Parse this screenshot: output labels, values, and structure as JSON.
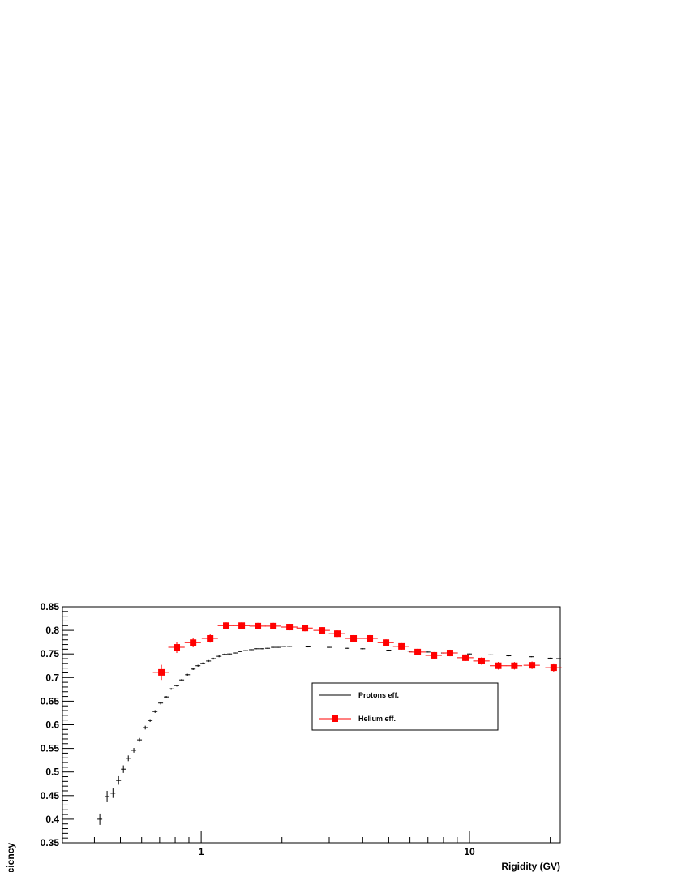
{
  "chart_data": {
    "type": "errorbar",
    "x_label": "Rigidity (GV)",
    "y_label": "Total efficiency",
    "xlim": [
      0.304,
      21.8
    ],
    "ylim": [
      0.35,
      0.85
    ],
    "xlog": true,
    "xticks": [
      1,
      10
    ],
    "xminorticks": [
      0.4,
      0.5,
      0.6,
      0.7,
      0.8,
      0.9,
      2,
      3,
      4,
      5,
      6,
      7,
      8,
      9,
      20
    ],
    "yticks": [
      0.35,
      0.4,
      0.45,
      0.5,
      0.55,
      0.6,
      0.65,
      0.7,
      0.75,
      0.8,
      0.85
    ],
    "legend_position": "center",
    "series": [
      {
        "name": "Protons eff.",
        "color": "#000000",
        "marker": "cross",
        "x": [
          0.419,
          0.446,
          0.469,
          0.492,
          0.513,
          0.535,
          0.561,
          0.589,
          0.619,
          0.645,
          0.673,
          0.706,
          0.741,
          0.773,
          0.811,
          0.846,
          0.889,
          0.933,
          0.973,
          1.014,
          1.065,
          1.11,
          1.166,
          1.224,
          1.276,
          1.34,
          1.396,
          1.466,
          1.539,
          1.605,
          1.685,
          1.769,
          1.858,
          1.937,
          2.034,
          2.135,
          2.5,
          3,
          3.5,
          4,
          5,
          6,
          7,
          8,
          10,
          12,
          14,
          17,
          20,
          21.5
        ],
        "values": [
          0.4,
          0.448,
          0.455,
          0.482,
          0.506,
          0.529,
          0.546,
          0.568,
          0.594,
          0.609,
          0.628,
          0.646,
          0.659,
          0.676,
          0.683,
          0.695,
          0.706,
          0.718,
          0.725,
          0.73,
          0.735,
          0.74,
          0.745,
          0.749,
          0.75,
          0.752,
          0.755,
          0.757,
          0.759,
          0.761,
          0.761,
          0.762,
          0.764,
          0.764,
          0.766,
          0.766,
          0.765,
          0.764,
          0.762,
          0.761,
          0.758,
          0.756,
          0.754,
          0.752,
          0.75,
          0.748,
          0.746,
          0.744,
          0.741,
          0.74
        ],
        "yerr": [
          0.012,
          0.012,
          0.01,
          0.009,
          0.008,
          0.006,
          0.005,
          0.004,
          0.004,
          0.003,
          0.003,
          0.003,
          0.002,
          0.002,
          0.002,
          0.002,
          0.002,
          0.002,
          0.002,
          0.002,
          0.002,
          0.002,
          0.002,
          0.002,
          0.001,
          0.001,
          0.001,
          0.001,
          0.001,
          0.001,
          0.001,
          0.001,
          0.001,
          0.001,
          0.001,
          0.001,
          0.001,
          0.001,
          0.001,
          0.001,
          0.001,
          0.001,
          0.001,
          0.001,
          0.001,
          0.001,
          0.001,
          0.001,
          0.001,
          0.001
        ]
      },
      {
        "name": "Helium eff.",
        "color": "#ff0000",
        "marker": "square",
        "x": [
          0.711,
          0.811,
          0.933,
          1.08,
          1.24,
          1.416,
          1.627,
          1.858,
          2.135,
          2.436,
          2.819,
          3.217,
          3.698,
          4.25,
          4.885,
          5.58,
          6.41,
          7.37,
          8.46,
          9.66,
          11.1,
          12.8,
          14.7,
          17.1,
          20.6
        ],
        "xerr": [
          0.05,
          0.057,
          0.065,
          0.075,
          0.087,
          0.1,
          0.114,
          0.13,
          0.15,
          0.17,
          0.2,
          0.225,
          0.26,
          0.3,
          0.34,
          0.39,
          0.45,
          0.52,
          0.59,
          0.68,
          0.78,
          0.9,
          1.03,
          1.2,
          1.44
        ],
        "values": [
          0.711,
          0.764,
          0.774,
          0.783,
          0.81,
          0.81,
          0.809,
          0.809,
          0.807,
          0.805,
          0.8,
          0.793,
          0.783,
          0.783,
          0.774,
          0.766,
          0.754,
          0.747,
          0.752,
          0.742,
          0.735,
          0.725,
          0.725,
          0.726,
          0.721
        ],
        "yerr": [
          0.016,
          0.012,
          0.01,
          0.009,
          0.007,
          0.007,
          0.007,
          0.007,
          0.007,
          0.007,
          0.007,
          0.007,
          0.007,
          0.007,
          0.007,
          0.007,
          0.007,
          0.007,
          0.007,
          0.007,
          0.008,
          0.008,
          0.008,
          0.008,
          0.009
        ]
      }
    ]
  }
}
